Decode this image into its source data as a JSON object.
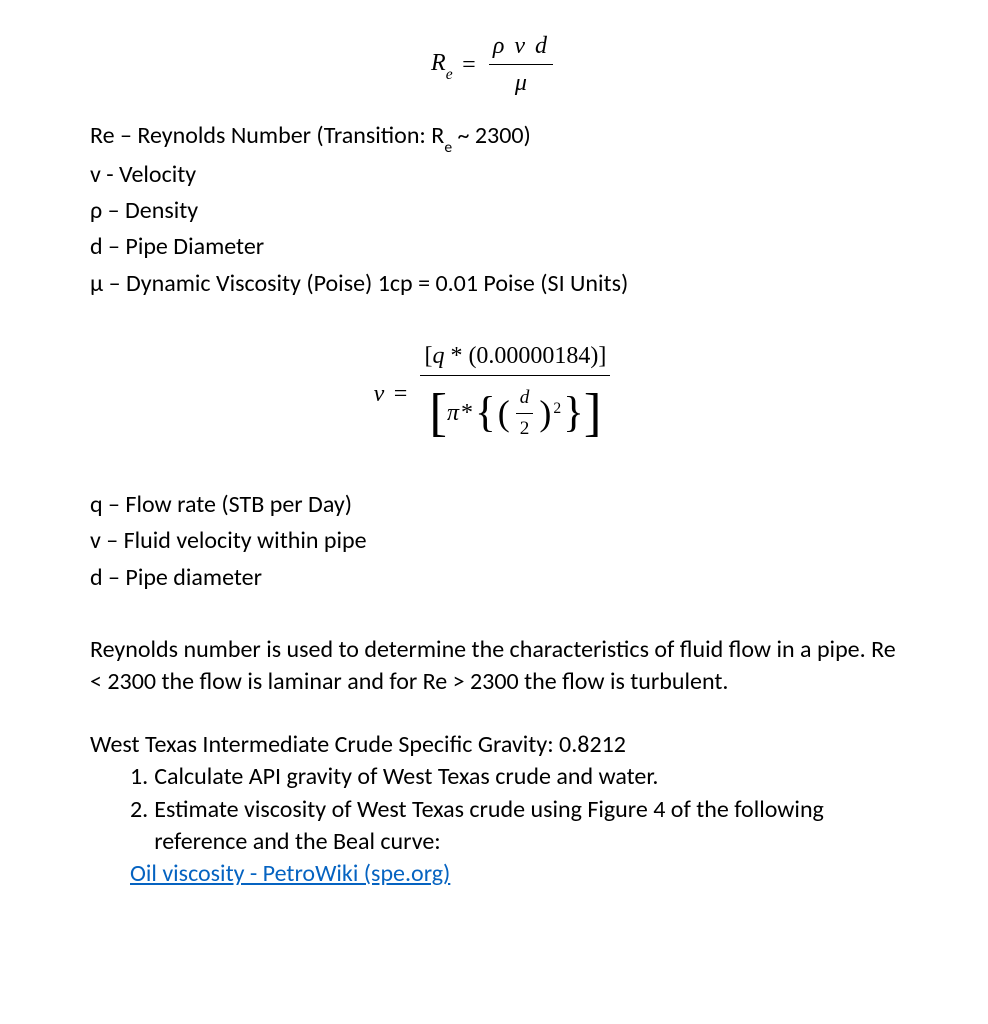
{
  "formula1": {
    "lhs_R": "R",
    "lhs_sub": "e",
    "eq": "=",
    "num": "ρ v d",
    "den": "μ"
  },
  "defs1": {
    "line1_a": "Re – Reynolds Number (Transition: R",
    "line1_sub": "e",
    "line1_b": " ~ 2300)",
    "line2": "v - Velocity",
    "line3": "ρ – Density",
    "line4": "d – Pipe Diameter",
    "line5": "μ – Dynamic Viscosity (Poise) 1cp = 0.01 Poise (SI Units)"
  },
  "formula2": {
    "lhs": "v",
    "eq": "=",
    "num_open": "[",
    "num_q": "q",
    "num_star": " * ",
    "num_val": "(0.00000184)",
    "num_close": "]",
    "den_open": "[",
    "den_pi": "π",
    "den_star": " * ",
    "den_brace_open": "{",
    "den_paren_open": "(",
    "den_frac_num": "d",
    "den_frac_den": "2",
    "den_paren_close": ")",
    "den_sup": "2",
    "den_brace_close": "}",
    "den_close": "]"
  },
  "defs2": {
    "line1": "q – Flow rate (STB per Day)",
    "line2": "v – Fluid velocity within pipe",
    "line3": "d – Pipe diameter"
  },
  "paragraph1": "Reynolds number is used to determine the characteristics of fluid flow in a pipe.  Re < 2300 the flow is laminar and for Re > 2300 the flow is turbulent.",
  "section2": {
    "intro": "West Texas Intermediate Crude Specific Gravity: 0.8212",
    "item1_num": "1.",
    "item1": "Calculate API gravity of West Texas crude and water.",
    "item2_num": "2.",
    "item2": "Estimate viscosity of West Texas crude using Figure 4 of the following reference and the Beal curve:",
    "link": "Oil viscosity - PetroWiki (spe.org)"
  },
  "colors": {
    "text": "#000000",
    "link": "#0563c1",
    "background": "#ffffff"
  },
  "typography": {
    "body_fontsize": 24,
    "formula_family": "Cambria Math / Times New Roman serif italic"
  }
}
